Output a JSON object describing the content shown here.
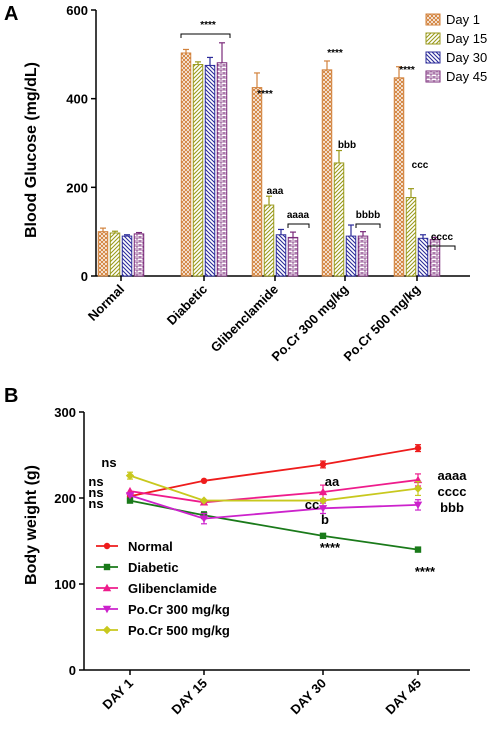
{
  "panel_a": {
    "letter": "A"
  },
  "panel_b": {
    "letter": "B"
  },
  "chart_data": [
    {
      "type": "bar",
      "ylabel": "Blood Glucose (mg/dL)",
      "ylim": [
        0,
        600
      ],
      "yticks": [
        "0",
        "200",
        "400",
        "600"
      ],
      "categories": [
        "Normal",
        "Diabetic",
        "Glibenclamide",
        "Po.Cr 300 mg/kg",
        "Po.Cr 500 mg/kg"
      ],
      "legend_position": "top-right",
      "series": [
        {
          "name": "Day 1",
          "color": "#d2823c",
          "pattern": "cross-hatch",
          "values": [
            100,
            503,
            425,
            465,
            447
          ],
          "errors": [
            8,
            8,
            33,
            20,
            25
          ]
        },
        {
          "name": "Day 15",
          "color": "#9a9a1c",
          "pattern": "diagonal",
          "values": [
            97,
            477,
            160,
            255,
            177
          ],
          "errors": [
            4,
            6,
            20,
            28,
            20
          ]
        },
        {
          "name": "Day 30",
          "color": "#2b2b9a",
          "pattern": "back-diagonal",
          "values": [
            90,
            475,
            93,
            90,
            85
          ],
          "errors": [
            3,
            18,
            12,
            25,
            8
          ]
        },
        {
          "name": "Day 45",
          "color": "#7a2a7a",
          "pattern": "brick",
          "values": [
            95,
            481,
            87,
            90,
            82
          ],
          "errors": [
            3,
            45,
            12,
            10,
            5
          ]
        }
      ],
      "annotations": [
        {
          "text": "****",
          "category": "Diabetic",
          "kind": "bracket"
        },
        {
          "text": "****",
          "category": "Glibenclamide",
          "series": "Day 1"
        },
        {
          "text": "aaa",
          "category": "Glibenclamide",
          "series": "Day 15"
        },
        {
          "text": "aaaa",
          "category": "Glibenclamide",
          "kind": "bracket"
        },
        {
          "text": "****",
          "category": "Po.Cr 300 mg/kg",
          "series": "Day 1"
        },
        {
          "text": "bbb",
          "category": "Po.Cr 300 mg/kg",
          "series": "Day 15"
        },
        {
          "text": "bbbb",
          "category": "Po.Cr 300 mg/kg",
          "kind": "bracket"
        },
        {
          "text": "****",
          "category": "Po.Cr 500 mg/kg",
          "series": "Day 1"
        },
        {
          "text": "ccc",
          "category": "Po.Cr 500 mg/kg",
          "series": "Day 15"
        },
        {
          "text": "cccc",
          "category": "Po.Cr 500 mg/kg",
          "kind": "bracket"
        }
      ]
    },
    {
      "type": "line",
      "ylabel": "Body weight (g)",
      "ylim": [
        0,
        300
      ],
      "yticks": [
        "0",
        "100",
        "200",
        "300"
      ],
      "categories": [
        "DAY 1",
        "DAY 15",
        "DAY 30",
        "DAY 45"
      ],
      "legend_position": "bottom-left",
      "series": [
        {
          "name": "Normal",
          "color": "#ee1c1c",
          "marker": "circle",
          "values": [
            202,
            220,
            239,
            258
          ],
          "errors": [
            0,
            0,
            4,
            4
          ]
        },
        {
          "name": "Diabetic",
          "color": "#1a7a1a",
          "marker": "square",
          "values": [
            197,
            180,
            156,
            140
          ],
          "errors": [
            0,
            4,
            0,
            0
          ]
        },
        {
          "name": "Glibenclamide",
          "color": "#ee1c8c",
          "marker": "triangle-up",
          "values": [
            208,
            195,
            207,
            221
          ],
          "errors": [
            0,
            0,
            8,
            7
          ]
        },
        {
          "name": "Po.Cr 300 mg/kg",
          "color": "#cc22cc",
          "marker": "triangle-down",
          "values": [
            203,
            176,
            188,
            192
          ],
          "errors": [
            0,
            6,
            6,
            6
          ]
        },
        {
          "name": "Po.Cr 500 mg/kg",
          "color": "#c8c81e",
          "marker": "diamond",
          "values": [
            226,
            197,
            197,
            211
          ],
          "errors": [
            4,
            0,
            0,
            8
          ]
        }
      ],
      "annotations": [
        "ns",
        "ns",
        "ns",
        "ns",
        "aa",
        "cc",
        "b",
        "****",
        "aaaa",
        "cccc",
        "bbb",
        "****"
      ]
    }
  ]
}
